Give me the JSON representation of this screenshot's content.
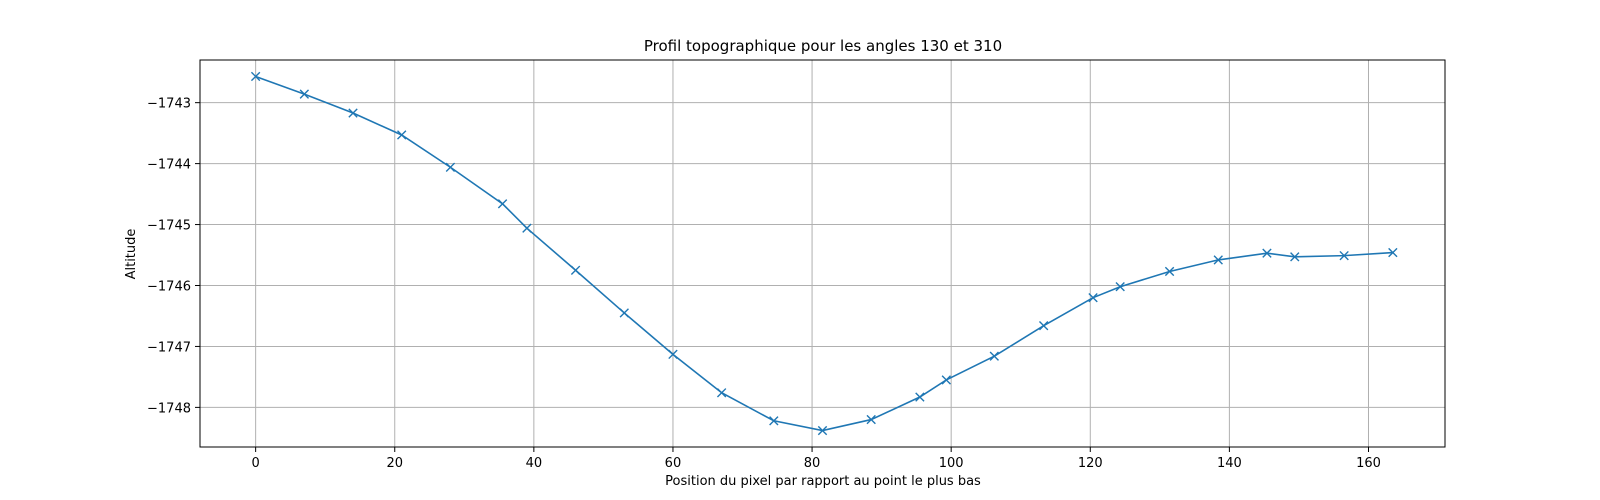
{
  "chart_data": {
    "type": "line",
    "title": "Profil topographique pour les angles 130 et 310",
    "xlabel": "Position du pixel par rapport au point le plus bas",
    "ylabel": "Altitude",
    "xlim": [
      -8,
      171
    ],
    "ylim": [
      -1748.65,
      -1742.3
    ],
    "xticks": [
      0,
      20,
      40,
      60,
      80,
      100,
      120,
      140,
      160
    ],
    "yticks": [
      -1748,
      -1747,
      -1746,
      -1745,
      -1744,
      -1743
    ],
    "ytick_labels": [
      "−1748",
      "−1747",
      "−1746",
      "−1745",
      "−1744",
      "−1743"
    ],
    "grid": true,
    "marker": "x",
    "series": [
      {
        "color": "#1f77b4",
        "x": [
          0,
          7,
          14,
          21,
          28,
          35.5,
          39,
          46,
          53,
          60,
          67,
          74.5,
          81.5,
          88.5,
          95.5,
          99.3,
          106.2,
          113.3,
          120.4,
          124.3,
          131.4,
          138.4,
          145.4,
          149.4,
          156.5,
          163.5
        ],
        "y": [
          -1742.57,
          -1742.86,
          -1743.17,
          -1743.53,
          -1744.06,
          -1744.66,
          -1745.06,
          -1745.75,
          -1746.45,
          -1747.13,
          -1747.76,
          -1748.22,
          -1748.38,
          -1748.2,
          -1747.83,
          -1747.55,
          -1747.16,
          -1746.66,
          -1746.2,
          -1746.02,
          -1745.77,
          -1745.58,
          -1745.47,
          -1745.53,
          -1745.51,
          -1745.46
        ]
      }
    ]
  }
}
